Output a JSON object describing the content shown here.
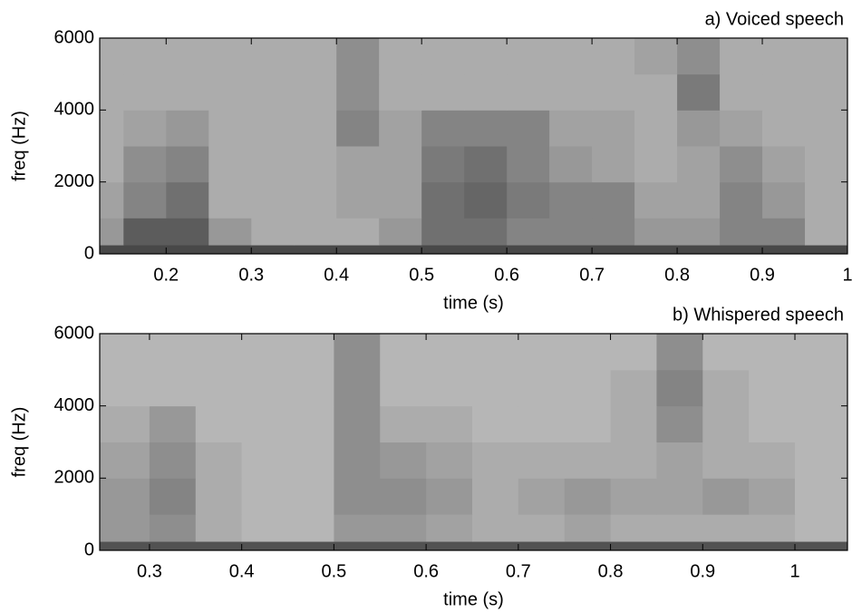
{
  "chart_data": [
    {
      "type": "heatmap",
      "title": "a) Voiced speech",
      "x_label": "time (s)",
      "y_label": "freq (Hz)",
      "xlim": [
        0.122,
        1.0
      ],
      "ylim": [
        0,
        6000
      ],
      "xticks": [
        0.2,
        0.3,
        0.4,
        0.5,
        0.6,
        0.7,
        0.8,
        0.9,
        1
      ],
      "yticks": [
        0,
        2000,
        4000,
        6000
      ],
      "zlim": [
        0,
        1
      ],
      "xbins": [
        0.122,
        0.15,
        0.2,
        0.25,
        0.3,
        0.35,
        0.4,
        0.45,
        0.5,
        0.55,
        0.6,
        0.65,
        0.7,
        0.75,
        0.8,
        0.85,
        0.9,
        0.95,
        1.0
      ],
      "ybins": [
        0,
        250,
        1000,
        2000,
        3000,
        4000,
        5000,
        6000
      ],
      "values": [
        [
          0.8,
          0.8,
          0.8,
          0.8,
          0.8,
          0.8,
          0.8,
          0.8,
          0.8,
          0.8,
          0.8,
          0.8,
          0.8,
          0.8,
          0.8,
          0.8,
          0.8,
          0.8
        ],
        [
          0.4,
          0.7,
          0.7,
          0.4,
          0.3,
          0.3,
          0.3,
          0.4,
          0.6,
          0.6,
          0.5,
          0.5,
          0.5,
          0.4,
          0.4,
          0.5,
          0.5,
          0.3
        ],
        [
          0.35,
          0.5,
          0.6,
          0.3,
          0.3,
          0.3,
          0.35,
          0.35,
          0.6,
          0.65,
          0.55,
          0.5,
          0.5,
          0.35,
          0.35,
          0.5,
          0.4,
          0.3
        ],
        [
          0.3,
          0.45,
          0.5,
          0.3,
          0.3,
          0.3,
          0.35,
          0.35,
          0.55,
          0.6,
          0.5,
          0.4,
          0.35,
          0.3,
          0.35,
          0.45,
          0.35,
          0.3
        ],
        [
          0.3,
          0.35,
          0.4,
          0.3,
          0.3,
          0.3,
          0.5,
          0.35,
          0.5,
          0.5,
          0.5,
          0.35,
          0.35,
          0.3,
          0.4,
          0.35,
          0.3,
          0.3
        ],
        [
          0.3,
          0.3,
          0.3,
          0.3,
          0.3,
          0.3,
          0.45,
          0.3,
          0.3,
          0.3,
          0.3,
          0.3,
          0.3,
          0.3,
          0.55,
          0.3,
          0.3,
          0.3
        ],
        [
          0.3,
          0.3,
          0.3,
          0.3,
          0.3,
          0.3,
          0.45,
          0.3,
          0.3,
          0.3,
          0.3,
          0.3,
          0.3,
          0.35,
          0.45,
          0.3,
          0.3,
          0.3
        ]
      ]
    },
    {
      "type": "heatmap",
      "title": "b) Whispered speech",
      "x_label": "time (s)",
      "y_label": "freq (Hz)",
      "xlim": [
        0.246,
        1.057
      ],
      "ylim": [
        0,
        6000
      ],
      "xticks": [
        0.3,
        0.4,
        0.5,
        0.6,
        0.7,
        0.8,
        0.9,
        1
      ],
      "yticks": [
        0,
        2000,
        4000,
        6000
      ],
      "zlim": [
        0,
        1
      ],
      "xbins": [
        0.246,
        0.3,
        0.35,
        0.4,
        0.45,
        0.5,
        0.55,
        0.6,
        0.65,
        0.7,
        0.75,
        0.8,
        0.85,
        0.9,
        0.95,
        1.0,
        1.05,
        1.057
      ],
      "ybins": [
        0,
        250,
        1000,
        2000,
        3000,
        4000,
        5000,
        6000
      ],
      "values": [
        [
          0.75,
          0.75,
          0.75,
          0.75,
          0.75,
          0.75,
          0.75,
          0.75,
          0.75,
          0.75,
          0.75,
          0.75,
          0.75,
          0.75,
          0.75,
          0.75,
          0.75
        ],
        [
          0.4,
          0.45,
          0.3,
          0.25,
          0.25,
          0.4,
          0.4,
          0.35,
          0.3,
          0.3,
          0.35,
          0.3,
          0.3,
          0.3,
          0.3,
          0.25,
          0.25
        ],
        [
          0.4,
          0.5,
          0.3,
          0.25,
          0.25,
          0.45,
          0.45,
          0.4,
          0.3,
          0.35,
          0.4,
          0.35,
          0.35,
          0.4,
          0.35,
          0.25,
          0.25
        ],
        [
          0.35,
          0.45,
          0.3,
          0.25,
          0.25,
          0.45,
          0.4,
          0.35,
          0.3,
          0.3,
          0.3,
          0.3,
          0.35,
          0.3,
          0.3,
          0.25,
          0.25
        ],
        [
          0.3,
          0.4,
          0.25,
          0.25,
          0.25,
          0.45,
          0.3,
          0.3,
          0.25,
          0.25,
          0.25,
          0.3,
          0.45,
          0.3,
          0.25,
          0.25,
          0.25
        ],
        [
          0.25,
          0.25,
          0.25,
          0.25,
          0.25,
          0.45,
          0.25,
          0.25,
          0.25,
          0.25,
          0.25,
          0.3,
          0.5,
          0.3,
          0.25,
          0.25,
          0.25
        ],
        [
          0.25,
          0.25,
          0.25,
          0.25,
          0.25,
          0.45,
          0.25,
          0.25,
          0.25,
          0.25,
          0.25,
          0.25,
          0.45,
          0.25,
          0.25,
          0.25,
          0.25
        ]
      ]
    }
  ]
}
